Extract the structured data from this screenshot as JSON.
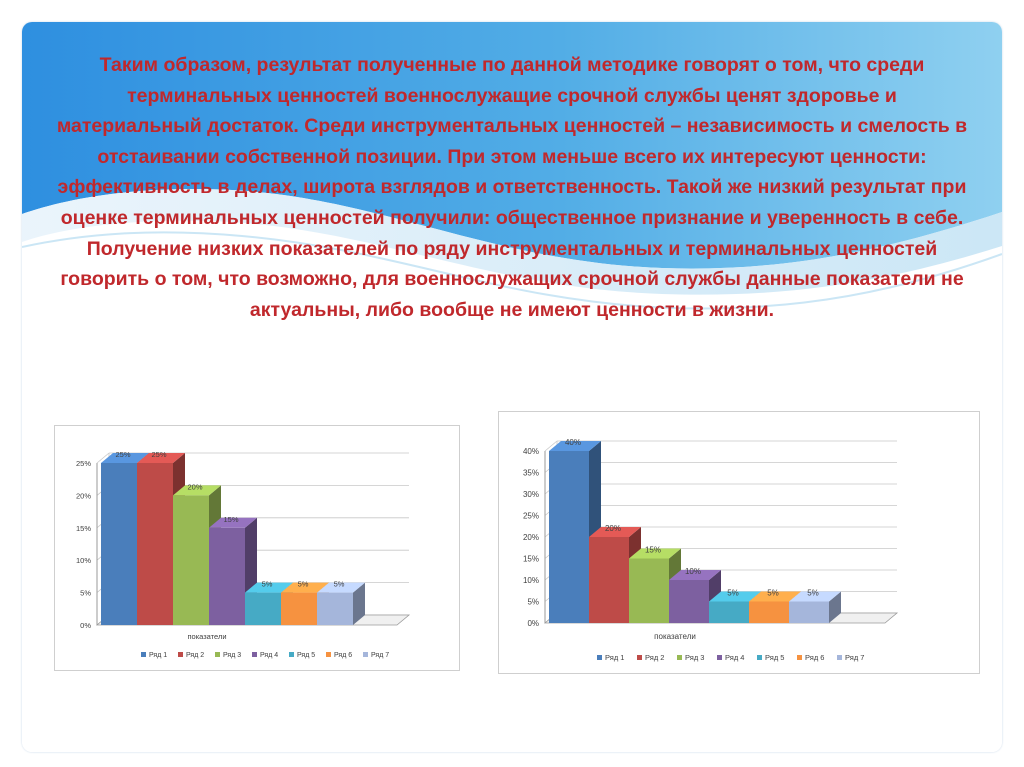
{
  "slide": {
    "text": "Таким образом, результат полученные по данной методике говорят о том, что среди терминальных ценностей военнослужащие срочной службы ценят здоровье и материальный достаток. Среди инструментальных ценностей – независимость и смелость в отстаивании собственной позиции. При этом меньше всего их интересуют ценности: эффективность в делах, широта взглядов и ответственность. Такой же низкий результат при оценке терминальных ценностей получили: общественное признание и уверенность в себе. Получение низких показателей по ряду инструментальных и терминальных ценностей говорить о том, что возможно, для военнослужащих срочной службы данные  показатели не актуальны, либо вообще не имеют ценности в жизни.",
    "text_color": "#c0282c",
    "background_accent": "#1e7fd8"
  },
  "chart_data": [
    {
      "type": "bar",
      "categories": [
        "показатели"
      ],
      "xlabel": "показатели",
      "ylabel": "",
      "ylim": [
        0,
        25
      ],
      "yticks": [
        "0%",
        "5%",
        "10%",
        "15%",
        "20%",
        "25%"
      ],
      "grid": true,
      "legend_position": "bottom",
      "series": [
        {
          "name": "Ряд 1",
          "values": [
            25
          ],
          "label": "25%",
          "color": "#4a7ebb"
        },
        {
          "name": "Ряд 2",
          "values": [
            25
          ],
          "label": "25%",
          "color": "#be4b48"
        },
        {
          "name": "Ряд 3",
          "values": [
            20
          ],
          "label": "20%",
          "color": "#98b954"
        },
        {
          "name": "Ряд 4",
          "values": [
            15
          ],
          "label": "15%",
          "color": "#7d60a0"
        },
        {
          "name": "Ряд 5",
          "values": [
            5
          ],
          "label": "5%",
          "color": "#46aac5"
        },
        {
          "name": "Ряд 6",
          "values": [
            5
          ],
          "label": "5%",
          "color": "#f69240"
        },
        {
          "name": "Ряд 7",
          "values": [
            5
          ],
          "label": "5%",
          "color": "#a5b6db"
        }
      ]
    },
    {
      "type": "bar",
      "categories": [
        "показатели"
      ],
      "xlabel": "показатели",
      "ylabel": "",
      "ylim": [
        0,
        40
      ],
      "yticks": [
        "0%",
        "5%",
        "10%",
        "15%",
        "20%",
        "25%",
        "30%",
        "35%",
        "40%"
      ],
      "grid": true,
      "legend_position": "bottom",
      "series": [
        {
          "name": "Ряд 1",
          "values": [
            40
          ],
          "label": "40%",
          "color": "#4a7ebb"
        },
        {
          "name": "Ряд 2",
          "values": [
            20
          ],
          "label": "20%",
          "color": "#be4b48"
        },
        {
          "name": "Ряд 3",
          "values": [
            15
          ],
          "label": "15%",
          "color": "#98b954"
        },
        {
          "name": "Ряд 4",
          "values": [
            10
          ],
          "label": "10%",
          "color": "#7d60a0"
        },
        {
          "name": "Ряд 5",
          "values": [
            5
          ],
          "label": "5%",
          "color": "#46aac5"
        },
        {
          "name": "Ряд 6",
          "values": [
            5
          ],
          "label": "5%",
          "color": "#f69240"
        },
        {
          "name": "Ряд 7",
          "values": [
            5
          ],
          "label": "5%",
          "color": "#a5b6db"
        }
      ]
    }
  ]
}
